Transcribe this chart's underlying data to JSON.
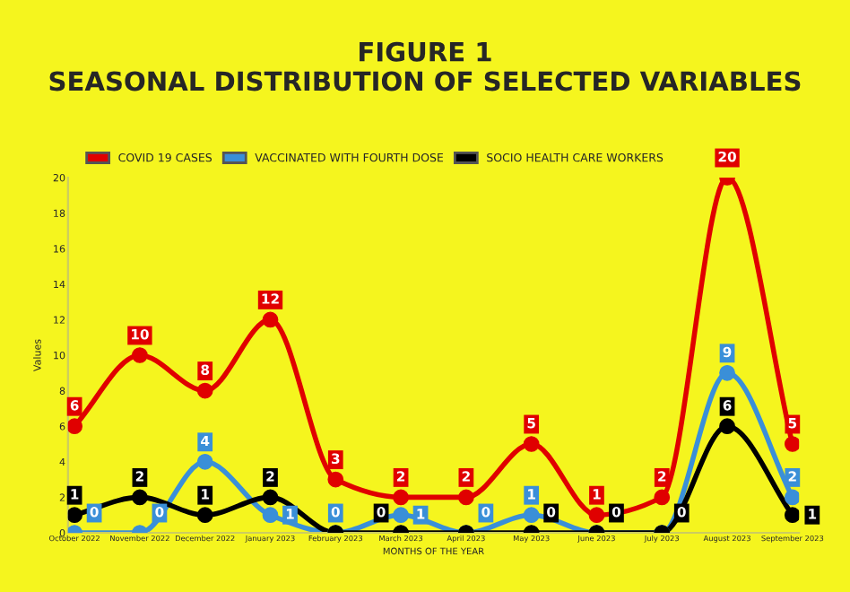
{
  "chart_data": {
    "type": "line",
    "title": "FIGURE 1\nSEASONAL DISTRIBUTION OF SELECTED VARIABLES",
    "xlabel": "MONTHS OF THE YEAR",
    "ylabel": "Values",
    "categories": [
      "October 2022",
      "November 2022",
      "December 2022",
      "January 2023",
      "February 2023",
      "March 2023",
      "April 2023",
      "May 2023",
      "June 2023",
      "July 2023",
      "August 2023",
      "September 2023"
    ],
    "series": [
      {
        "name": "COVID 19 CASES",
        "color": "#e00000",
        "values": [
          6,
          10,
          8,
          12,
          3,
          2,
          2,
          5,
          1,
          2,
          20,
          5
        ]
      },
      {
        "name": "VACCINATED WITH FOURTH DOSE",
        "color": "#3a8fd8",
        "values": [
          0,
          0,
          4,
          1,
          0,
          1,
          0,
          1,
          0,
          0,
          9,
          2
        ],
        "value_labels": [
          "0",
          "0",
          "4",
          "1",
          "0",
          "1",
          "0",
          "1",
          null,
          null,
          "9",
          "2"
        ]
      },
      {
        "name": "SOCIO HEALTH CARE WORKERS",
        "color": "#000000",
        "values": [
          1,
          2,
          1,
          2,
          0,
          0,
          0,
          0,
          0,
          0,
          6,
          1
        ],
        "value_labels": [
          "1",
          "2",
          "1",
          "2",
          null,
          "0",
          null,
          "0",
          "0",
          "0",
          "6",
          "1"
        ]
      }
    ],
    "ylim": [
      0,
      20
    ],
    "yticks": [
      0,
      2,
      4,
      6,
      8,
      10,
      12,
      14,
      16,
      18,
      20
    ],
    "legend": "top",
    "marker": "circle",
    "line_style": "solid",
    "data_labels": true,
    "grid": false
  }
}
